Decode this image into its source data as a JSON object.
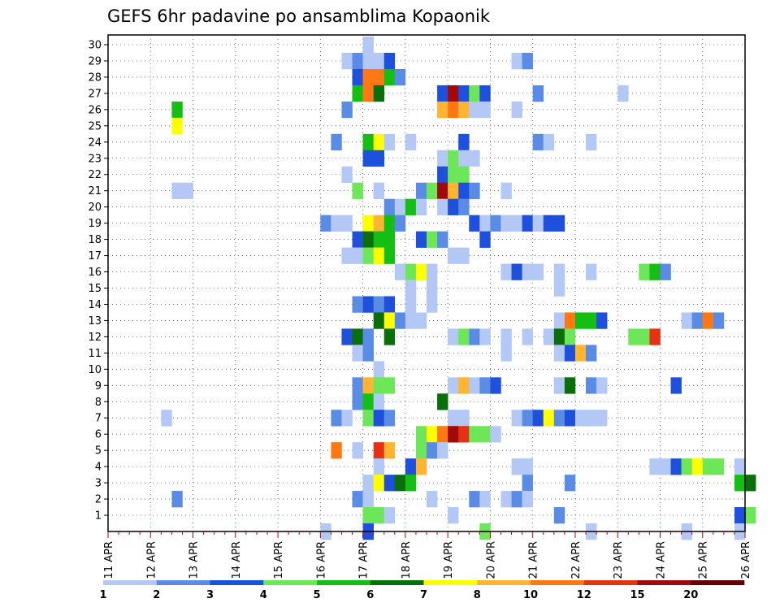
{
  "chart_data": {
    "type": "heatmap",
    "title": "GEFS 6hr padavine po ansamblima Kopaonik",
    "xlabel": "",
    "ylabel": "",
    "x_ticks": [
      "11 APR",
      "12 APR",
      "13 APR",
      "14 APR",
      "15 APR",
      "16 APR",
      "17 APR",
      "18 APR",
      "19 APR",
      "20 APR",
      "21 APR",
      "22 APR",
      "23 APR",
      "24 APR",
      "25 APR",
      "26 APR"
    ],
    "x_range_steps": [
      0,
      60
    ],
    "y_ticks": [
      1,
      2,
      3,
      4,
      5,
      6,
      7,
      8,
      9,
      10,
      11,
      12,
      13,
      14,
      15,
      16,
      17,
      18,
      19,
      20,
      21,
      22,
      23,
      24,
      25,
      26,
      27,
      28,
      29,
      30
    ],
    "grid": true,
    "legend_position": "bottom",
    "colorbar": {
      "labels": [
        "1",
        "2",
        "3",
        "4",
        "5",
        "6",
        "7",
        "8",
        "10",
        "12",
        "15",
        "20"
      ],
      "colors": [
        "#b4c8f5",
        "#5a8ce6",
        "#1e50dc",
        "#6ee65a",
        "#14be14",
        "#0a6e0a",
        "#ffff00",
        "#ffb432",
        "#ff7814",
        "#e63214",
        "#a00a0a",
        "#640000"
      ]
    },
    "cells": [
      [
        30,
        24.5,
        1
      ],
      [
        29,
        22.5,
        1
      ],
      [
        29,
        23.5,
        2
      ],
      [
        29,
        24.5,
        1
      ],
      [
        29,
        25.5,
        1
      ],
      [
        29,
        26.5,
        3
      ],
      [
        29,
        38.5,
        1
      ],
      [
        29,
        39.5,
        2
      ],
      [
        28,
        23.5,
        3
      ],
      [
        28,
        24.5,
        9
      ],
      [
        28,
        25.5,
        9
      ],
      [
        28,
        26.5,
        5
      ],
      [
        28,
        27.5,
        2
      ],
      [
        27,
        23.5,
        5
      ],
      [
        27,
        24.5,
        9
      ],
      [
        27,
        25.5,
        6
      ],
      [
        27,
        31.5,
        3
      ],
      [
        27,
        32.5,
        11
      ],
      [
        27,
        33.5,
        3
      ],
      [
        27,
        34.5,
        4
      ],
      [
        27,
        35.5,
        3
      ],
      [
        27,
        40.5,
        2
      ],
      [
        27,
        48.5,
        1
      ],
      [
        26,
        6.5,
        5
      ],
      [
        26,
        22.5,
        2
      ],
      [
        26,
        31.5,
        8
      ],
      [
        26,
        32.5,
        9
      ],
      [
        26,
        33.5,
        8
      ],
      [
        26,
        34.5,
        1
      ],
      [
        26,
        35.5,
        1
      ],
      [
        26,
        38.5,
        1
      ],
      [
        25,
        6.5,
        7
      ],
      [
        24,
        21.5,
        2
      ],
      [
        24,
        24.5,
        5
      ],
      [
        24,
        25.5,
        7
      ],
      [
        24,
        26.5,
        1
      ],
      [
        24,
        28.5,
        1
      ],
      [
        24,
        33.5,
        3
      ],
      [
        24,
        40.5,
        2
      ],
      [
        24,
        41.5,
        1
      ],
      [
        24,
        45.5,
        1
      ],
      [
        23,
        24.5,
        3
      ],
      [
        23,
        25.5,
        3
      ],
      [
        23,
        31.5,
        1
      ],
      [
        23,
        32.5,
        4
      ],
      [
        23,
        33.5,
        1
      ],
      [
        23,
        34.5,
        1
      ],
      [
        22,
        22.5,
        1
      ],
      [
        22,
        31.5,
        3
      ],
      [
        22,
        32.5,
        4
      ],
      [
        22,
        33.5,
        4
      ],
      [
        21,
        6.5,
        1
      ],
      [
        21,
        7.5,
        1
      ],
      [
        21,
        23.5,
        4
      ],
      [
        21,
        25.5,
        1
      ],
      [
        21,
        29.5,
        2
      ],
      [
        21,
        30.5,
        4
      ],
      [
        21,
        31.5,
        11
      ],
      [
        21,
        32.5,
        8
      ],
      [
        21,
        33.5,
        3
      ],
      [
        21,
        34.5,
        2
      ],
      [
        21,
        37.5,
        1
      ],
      [
        20,
        26.5,
        2
      ],
      [
        20,
        27.5,
        1
      ],
      [
        20,
        28.5,
        5
      ],
      [
        20,
        29.5,
        1
      ],
      [
        20,
        31.5,
        1
      ],
      [
        20,
        32.5,
        3
      ],
      [
        20,
        33.5,
        2
      ],
      [
        19,
        20.5,
        2
      ],
      [
        19,
        21.5,
        1
      ],
      [
        19,
        22.5,
        1
      ],
      [
        19,
        24.5,
        7
      ],
      [
        19,
        25.5,
        8
      ],
      [
        19,
        26.5,
        5
      ],
      [
        19,
        27.5,
        2
      ],
      [
        19,
        34.5,
        3
      ],
      [
        19,
        35.5,
        1
      ],
      [
        19,
        36.5,
        2
      ],
      [
        19,
        37.5,
        1
      ],
      [
        19,
        38.5,
        1
      ],
      [
        19,
        39.5,
        3
      ],
      [
        19,
        40.5,
        1
      ],
      [
        19,
        41.5,
        3
      ],
      [
        19,
        42.5,
        3
      ],
      [
        18,
        23.5,
        3
      ],
      [
        18,
        24.5,
        6
      ],
      [
        18,
        25.5,
        5
      ],
      [
        18,
        26.5,
        5
      ],
      [
        18,
        29.5,
        3
      ],
      [
        18,
        30.5,
        4
      ],
      [
        18,
        31.5,
        2
      ],
      [
        18,
        35.5,
        3
      ],
      [
        17,
        22.5,
        1
      ],
      [
        17,
        23.5,
        1
      ],
      [
        17,
        24.5,
        4
      ],
      [
        17,
        25.5,
        7
      ],
      [
        17,
        26.5,
        5
      ],
      [
        17,
        32.5,
        1
      ],
      [
        17,
        33.5,
        1
      ],
      [
        16,
        27.5,
        1
      ],
      [
        16,
        28.5,
        4
      ],
      [
        16,
        29.5,
        7
      ],
      [
        16,
        30.5,
        1
      ],
      [
        16,
        37.5,
        1
      ],
      [
        16,
        38.5,
        3
      ],
      [
        16,
        39.5,
        1
      ],
      [
        16,
        40.5,
        1
      ],
      [
        16,
        42.5,
        1
      ],
      [
        16,
        45.5,
        1
      ],
      [
        16,
        50.5,
        4
      ],
      [
        16,
        51.5,
        5
      ],
      [
        16,
        52.5,
        2
      ],
      [
        15,
        28.5,
        1
      ],
      [
        15,
        30.5,
        1
      ],
      [
        15,
        42.5,
        1
      ],
      [
        14,
        23.5,
        2
      ],
      [
        14,
        24.5,
        3
      ],
      [
        14,
        25.5,
        2
      ],
      [
        14,
        26.5,
        3
      ],
      [
        14,
        28.5,
        1
      ],
      [
        14,
        30.5,
        1
      ],
      [
        13,
        25.5,
        6
      ],
      [
        13,
        26.5,
        7
      ],
      [
        13,
        27.5,
        2
      ],
      [
        13,
        28.5,
        1
      ],
      [
        13,
        29.5,
        1
      ],
      [
        13,
        42.5,
        1
      ],
      [
        13,
        43.5,
        9
      ],
      [
        13,
        44.5,
        5
      ],
      [
        13,
        45.5,
        5
      ],
      [
        13,
        46.5,
        3
      ],
      [
        13,
        54.5,
        1
      ],
      [
        13,
        55.5,
        2
      ],
      [
        13,
        56.5,
        9
      ],
      [
        13,
        57.5,
        2
      ],
      [
        12,
        22.5,
        3
      ],
      [
        12,
        23.5,
        6
      ],
      [
        12,
        24.5,
        2
      ],
      [
        12,
        26.5,
        6
      ],
      [
        12,
        32.5,
        1
      ],
      [
        12,
        33.5,
        4
      ],
      [
        12,
        34.5,
        2
      ],
      [
        12,
        35.5,
        1
      ],
      [
        12,
        37.5,
        1
      ],
      [
        12,
        39.5,
        1
      ],
      [
        12,
        41.5,
        1
      ],
      [
        12,
        42.5,
        6
      ],
      [
        12,
        43.5,
        4
      ],
      [
        12,
        49.5,
        4
      ],
      [
        12,
        50.5,
        4
      ],
      [
        12,
        51.5,
        10
      ],
      [
        11,
        23.5,
        1
      ],
      [
        11,
        24.5,
        2
      ],
      [
        11,
        37.5,
        1
      ],
      [
        11,
        42.5,
        1
      ],
      [
        11,
        43.5,
        3
      ],
      [
        11,
        44.5,
        8
      ],
      [
        11,
        45.5,
        2
      ],
      [
        10,
        25.5,
        1
      ],
      [
        9,
        23.5,
        2
      ],
      [
        9,
        24.5,
        8
      ],
      [
        9,
        25.5,
        4
      ],
      [
        9,
        26.5,
        4
      ],
      [
        9,
        32.5,
        1
      ],
      [
        9,
        33.5,
        8
      ],
      [
        9,
        34.5,
        1
      ],
      [
        9,
        35.5,
        2
      ],
      [
        9,
        36.5,
        3
      ],
      [
        9,
        42.5,
        1
      ],
      [
        9,
        43.5,
        6
      ],
      [
        9,
        45.5,
        2
      ],
      [
        9,
        46.5,
        1
      ],
      [
        9,
        53.5,
        3
      ],
      [
        8,
        23.5,
        2
      ],
      [
        8,
        24.5,
        5
      ],
      [
        8,
        25.5,
        1
      ],
      [
        8,
        31.5,
        6
      ],
      [
        7,
        5.5,
        1
      ],
      [
        7,
        21.5,
        2
      ],
      [
        7,
        22.5,
        1
      ],
      [
        7,
        24.5,
        4
      ],
      [
        7,
        25.5,
        3
      ],
      [
        7,
        26.5,
        2
      ],
      [
        7,
        32.5,
        1
      ],
      [
        7,
        33.5,
        1
      ],
      [
        7,
        38.5,
        1
      ],
      [
        7,
        39.5,
        2
      ],
      [
        7,
        40.5,
        3
      ],
      [
        7,
        41.5,
        7
      ],
      [
        7,
        42.5,
        2
      ],
      [
        7,
        43.5,
        3
      ],
      [
        7,
        44.5,
        1
      ],
      [
        7,
        45.5,
        1
      ],
      [
        7,
        46.5,
        1
      ],
      [
        6,
        29.5,
        4
      ],
      [
        6,
        30.5,
        7
      ],
      [
        6,
        31.5,
        9
      ],
      [
        6,
        32.5,
        11
      ],
      [
        6,
        33.5,
        10
      ],
      [
        6,
        34.5,
        4
      ],
      [
        6,
        35.5,
        4
      ],
      [
        6,
        36.5,
        1
      ],
      [
        5,
        21.5,
        9
      ],
      [
        5,
        23.5,
        1
      ],
      [
        5,
        25.5,
        10
      ],
      [
        5,
        26.5,
        8
      ],
      [
        5,
        29.5,
        4
      ],
      [
        5,
        30.5,
        2
      ],
      [
        5,
        31.5,
        1
      ],
      [
        4,
        25.5,
        1
      ],
      [
        4,
        28.5,
        3
      ],
      [
        4,
        29.5,
        8
      ],
      [
        4,
        38.5,
        1
      ],
      [
        4,
        39.5,
        1
      ],
      [
        4,
        51.5,
        1
      ],
      [
        4,
        52.5,
        1
      ],
      [
        4,
        53.5,
        3
      ],
      [
        4,
        54.5,
        4
      ],
      [
        4,
        55.5,
        7
      ],
      [
        4,
        56.5,
        4
      ],
      [
        4,
        57.5,
        4
      ],
      [
        4,
        59.5,
        1
      ],
      [
        3,
        24.5,
        1
      ],
      [
        3,
        25.5,
        7
      ],
      [
        3,
        26.5,
        3
      ],
      [
        3,
        27.5,
        6
      ],
      [
        3,
        28.5,
        5
      ],
      [
        3,
        39.5,
        2
      ],
      [
        3,
        43.5,
        2
      ],
      [
        3,
        59.5,
        5
      ],
      [
        3,
        60.5,
        6
      ],
      [
        2,
        6.5,
        2
      ],
      [
        2,
        23.5,
        2
      ],
      [
        2,
        24.5,
        1
      ],
      [
        2,
        30.5,
        1
      ],
      [
        2,
        34.5,
        2
      ],
      [
        2,
        35.5,
        1
      ],
      [
        2,
        37.5,
        1
      ],
      [
        2,
        38.5,
        2
      ],
      [
        2,
        39.5,
        1
      ],
      [
        1,
        24.5,
        4
      ],
      [
        1,
        25.5,
        4
      ],
      [
        1,
        26.5,
        1
      ],
      [
        1,
        32.5,
        1
      ],
      [
        1,
        42.5,
        2
      ],
      [
        1,
        59.5,
        3
      ],
      [
        1,
        60.5,
        4
      ],
      [
        0,
        20.5,
        1
      ],
      [
        0,
        24.5,
        3
      ],
      [
        0,
        35.5,
        4
      ],
      [
        0,
        45.5,
        1
      ],
      [
        0,
        54.5,
        1
      ],
      [
        0,
        59.5,
        1
      ]
    ]
  }
}
